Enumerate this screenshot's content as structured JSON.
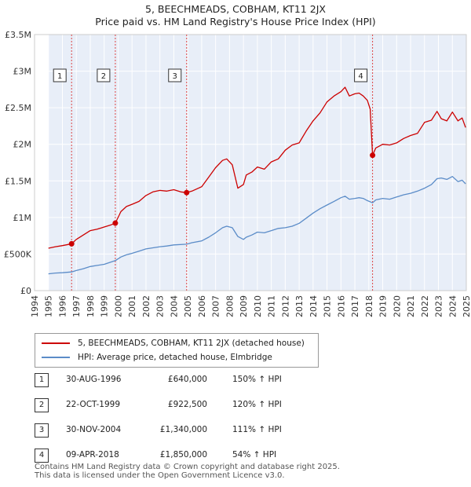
{
  "title_line1": "5, BEECHMEADS, COBHAM, KT11 2JX",
  "title_line2": "Price paid vs. HM Land Registry's House Price Index (HPI)",
  "chart_data": {
    "type": "line",
    "title": "Price paid vs. HM Land Registry's House Price Index (HPI)",
    "ylim": [
      0,
      3500000
    ],
    "xlim": [
      1994.0,
      2025.0
    ],
    "y_ticks": [
      {
        "value": 0,
        "label": "£0"
      },
      {
        "value": 500000,
        "label": "£500K"
      },
      {
        "value": 1000000,
        "label": "£1M"
      },
      {
        "value": 1500000,
        "label": "£1.5M"
      },
      {
        "value": 2000000,
        "label": "£2M"
      },
      {
        "value": 2500000,
        "label": "£2.5M"
      },
      {
        "value": 3000000,
        "label": "£3M"
      },
      {
        "value": 3500000,
        "label": "£3.5M"
      }
    ],
    "x_ticks": [
      "1994",
      "1995",
      "1996",
      "1997",
      "1998",
      "1999",
      "2000",
      "2001",
      "2002",
      "2003",
      "2004",
      "2005",
      "2006",
      "2007",
      "2008",
      "2009",
      "2010",
      "2011",
      "2012",
      "2013",
      "2014",
      "2015",
      "2016",
      "2017",
      "2018",
      "2019",
      "2020",
      "2021",
      "2022",
      "2023",
      "2024",
      "2025"
    ],
    "ownership_band": [
      1995.0,
      2025.0
    ],
    "series": [
      {
        "name": "5, BEECHMEADS, COBHAM, KT11 2JX (detached house)",
        "color": "#cc0000",
        "x": [
          1995.0,
          1995.5,
          1996.0,
          1996.4,
          1996.66,
          1997.0,
          1997.5,
          1998.0,
          1998.5,
          1999.0,
          1999.5,
          1999.8,
          2000.2,
          2000.6,
          2001.0,
          2001.5,
          2002.0,
          2002.5,
          2003.0,
          2003.5,
          2004.0,
          2004.5,
          2004.92,
          2005.3,
          2006.0,
          2006.5,
          2007.0,
          2007.5,
          2007.8,
          2008.2,
          2008.6,
          2009.0,
          2009.2,
          2009.6,
          2010.0,
          2010.5,
          2011.0,
          2011.5,
          2012.0,
          2012.5,
          2013.0,
          2013.5,
          2014.0,
          2014.5,
          2015.0,
          2015.5,
          2016.0,
          2016.3,
          2016.6,
          2017.0,
          2017.3,
          2017.6,
          2017.9,
          2018.1,
          2018.27,
          2018.5,
          2019.0,
          2019.5,
          2020.0,
          2020.5,
          2021.0,
          2021.5,
          2022.0,
          2022.5,
          2022.9,
          2023.2,
          2023.6,
          2024.0,
          2024.4,
          2024.7,
          2024.95
        ],
        "y": [
          580000,
          600000,
          615000,
          630000,
          640000,
          700000,
          760000,
          820000,
          840000,
          870000,
          900000,
          922500,
          1080000,
          1150000,
          1180000,
          1220000,
          1300000,
          1350000,
          1370000,
          1360000,
          1380000,
          1350000,
          1340000,
          1360000,
          1420000,
          1550000,
          1680000,
          1780000,
          1800000,
          1720000,
          1400000,
          1450000,
          1580000,
          1620000,
          1690000,
          1660000,
          1760000,
          1800000,
          1920000,
          1990000,
          2020000,
          2180000,
          2320000,
          2430000,
          2580000,
          2660000,
          2720000,
          2780000,
          2660000,
          2690000,
          2700000,
          2660000,
          2600000,
          2480000,
          1850000,
          1950000,
          2000000,
          1990000,
          2020000,
          2080000,
          2120000,
          2150000,
          2300000,
          2330000,
          2450000,
          2350000,
          2320000,
          2440000,
          2320000,
          2360000,
          2230000
        ]
      },
      {
        "name": "HPI: Average price, detached house, Elmbridge",
        "color": "#5b8cc8",
        "x": [
          1995.0,
          1995.5,
          1996.0,
          1996.66,
          1997.0,
          1997.5,
          1998.0,
          1998.5,
          1999.0,
          1999.8,
          2000.2,
          2000.6,
          2001.0,
          2001.5,
          2002.0,
          2002.5,
          2003.0,
          2003.5,
          2004.0,
          2004.92,
          2005.3,
          2006.0,
          2006.5,
          2007.0,
          2007.5,
          2007.8,
          2008.2,
          2008.6,
          2009.0,
          2009.2,
          2009.6,
          2010.0,
          2010.5,
          2011.0,
          2011.5,
          2012.0,
          2012.5,
          2013.0,
          2013.5,
          2014.0,
          2014.5,
          2015.0,
          2015.5,
          2016.0,
          2016.3,
          2016.6,
          2017.0,
          2017.3,
          2017.6,
          2017.9,
          2018.27,
          2018.5,
          2019.0,
          2019.5,
          2020.0,
          2020.5,
          2021.0,
          2021.5,
          2022.0,
          2022.5,
          2022.9,
          2023.2,
          2023.6,
          2024.0,
          2024.4,
          2024.7,
          2024.95
        ],
        "y": [
          230000,
          240000,
          245000,
          255000,
          275000,
          300000,
          330000,
          345000,
          360000,
          410000,
          460000,
          490000,
          510000,
          540000,
          570000,
          585000,
          600000,
          610000,
          625000,
          635000,
          655000,
          680000,
          730000,
          790000,
          860000,
          880000,
          860000,
          740000,
          700000,
          730000,
          760000,
          800000,
          790000,
          820000,
          850000,
          860000,
          880000,
          920000,
          990000,
          1060000,
          1120000,
          1170000,
          1220000,
          1270000,
          1290000,
          1250000,
          1260000,
          1270000,
          1260000,
          1230000,
          1200000,
          1240000,
          1260000,
          1250000,
          1280000,
          1310000,
          1330000,
          1360000,
          1400000,
          1450000,
          1530000,
          1540000,
          1520000,
          1560000,
          1490000,
          1510000,
          1460000
        ]
      }
    ],
    "annotations": [
      {
        "label": "1",
        "x": 1996.66,
        "y": 640000,
        "date": "30-AUG-1996",
        "price": "£640,000",
        "pct": "150% ↑ HPI"
      },
      {
        "label": "2",
        "x": 1999.8,
        "y": 922500,
        "date": "22-OCT-1999",
        "price": "£922,500",
        "pct": "120% ↑ HPI"
      },
      {
        "label": "3",
        "x": 2004.92,
        "y": 1340000,
        "date": "30-NOV-2004",
        "price": "£1,340,000",
        "pct": "111% ↑ HPI"
      },
      {
        "label": "4",
        "x": 2018.27,
        "y": 1850000,
        "date": "09-APR-2018",
        "price": "£1,850,000",
        "pct": "54% ↑ HPI"
      }
    ]
  },
  "legend": {
    "red_label": "5, BEECHMEADS, COBHAM, KT11 2JX (detached house)",
    "blue_label": "HPI: Average price, detached house, Elmbridge",
    "red_color": "#cc0000",
    "blue_color": "#5b8cc8"
  },
  "transactions": [
    {
      "num": "1",
      "date": "30-AUG-1996",
      "price": "£640,000",
      "pct": "150% ↑ HPI"
    },
    {
      "num": "2",
      "date": "22-OCT-1999",
      "price": "£922,500",
      "pct": "120% ↑ HPI"
    },
    {
      "num": "3",
      "date": "30-NOV-2004",
      "price": "£1,340,000",
      "pct": "111% ↑ HPI"
    },
    {
      "num": "4",
      "date": "09-APR-2018",
      "price": "£1,850,000",
      "pct": "54% ↑ HPI"
    }
  ],
  "footer": {
    "line1": "Contains HM Land Registry data © Crown copyright and database right 2025.",
    "line2": "This data is licensed under the Open Government Licence v3.0."
  }
}
